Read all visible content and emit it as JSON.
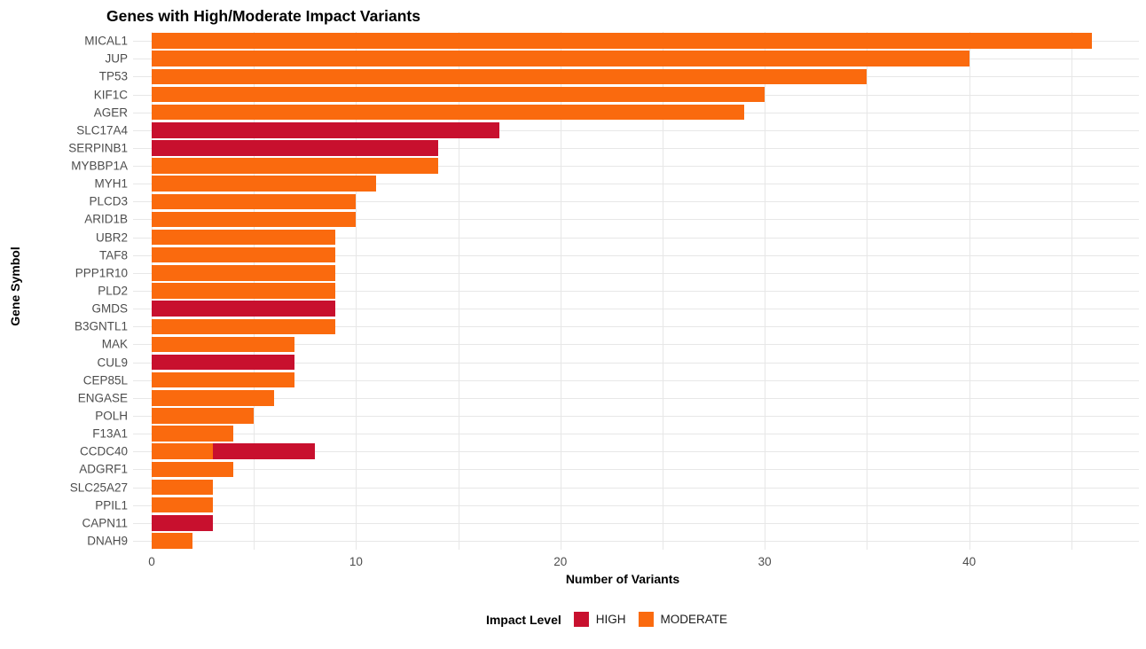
{
  "chart_data": {
    "type": "bar",
    "orientation": "horizontal",
    "title": "Genes with High/Moderate Impact Variants",
    "xlabel": "Number of Variants",
    "ylabel": "Gene Symbol",
    "xlim": [
      0,
      48.3
    ],
    "xticks": [
      0,
      10,
      20,
      30,
      40
    ],
    "gridlines_x": [
      0,
      5,
      10,
      15,
      20,
      25,
      30,
      35,
      40,
      45
    ],
    "grid": true,
    "background": "#ffffff",
    "grid_color": "#e7e7e7",
    "colors": {
      "HIGH": "#C8102E",
      "MODERATE": "#FA6A0E"
    },
    "legend": {
      "title": "Impact Level",
      "position": "bottom",
      "entries": [
        {
          "label": "HIGH",
          "color": "#C8102E"
        },
        {
          "label": "MODERATE",
          "color": "#FA6A0E"
        }
      ]
    },
    "categories": [
      "MICAL1",
      "JUP",
      "TP53",
      "KIF1C",
      "AGER",
      "SLC17A4",
      "SERPINB1",
      "MYBBP1A",
      "MYH1",
      "PLCD3",
      "ARID1B",
      "UBR2",
      "TAF8",
      "PPP1R10",
      "PLD2",
      "GMDS",
      "B3GNTL1",
      "MAK",
      "CUL9",
      "CEP85L",
      "ENGASE",
      "POLH",
      "F13A1",
      "CCDC40",
      "ADGRF1",
      "SLC25A27",
      "PPIL1",
      "CAPN11",
      "DNAH9"
    ],
    "bars": [
      {
        "gene": "MICAL1",
        "total": 46,
        "segments": [
          {
            "level": "MODERATE",
            "value": 46
          }
        ]
      },
      {
        "gene": "JUP",
        "total": 40,
        "segments": [
          {
            "level": "MODERATE",
            "value": 40
          }
        ]
      },
      {
        "gene": "TP53",
        "total": 35,
        "segments": [
          {
            "level": "MODERATE",
            "value": 35
          }
        ]
      },
      {
        "gene": "KIF1C",
        "total": 30,
        "segments": [
          {
            "level": "MODERATE",
            "value": 30
          }
        ]
      },
      {
        "gene": "AGER",
        "total": 29,
        "segments": [
          {
            "level": "MODERATE",
            "value": 29
          }
        ]
      },
      {
        "gene": "SLC17A4",
        "total": 17,
        "segments": [
          {
            "level": "HIGH",
            "value": 17
          }
        ]
      },
      {
        "gene": "SERPINB1",
        "total": 14,
        "segments": [
          {
            "level": "HIGH",
            "value": 14
          }
        ]
      },
      {
        "gene": "MYBBP1A",
        "total": 14,
        "segments": [
          {
            "level": "MODERATE",
            "value": 14
          }
        ]
      },
      {
        "gene": "MYH1",
        "total": 11,
        "segments": [
          {
            "level": "MODERATE",
            "value": 11
          }
        ]
      },
      {
        "gene": "PLCD3",
        "total": 10,
        "segments": [
          {
            "level": "MODERATE",
            "value": 10
          }
        ]
      },
      {
        "gene": "ARID1B",
        "total": 10,
        "segments": [
          {
            "level": "MODERATE",
            "value": 10
          }
        ]
      },
      {
        "gene": "UBR2",
        "total": 9,
        "segments": [
          {
            "level": "MODERATE",
            "value": 9
          }
        ]
      },
      {
        "gene": "TAF8",
        "total": 9,
        "segments": [
          {
            "level": "MODERATE",
            "value": 9
          }
        ]
      },
      {
        "gene": "PPP1R10",
        "total": 9,
        "segments": [
          {
            "level": "MODERATE",
            "value": 9
          }
        ]
      },
      {
        "gene": "PLD2",
        "total": 9,
        "segments": [
          {
            "level": "MODERATE",
            "value": 9
          }
        ]
      },
      {
        "gene": "GMDS",
        "total": 9,
        "segments": [
          {
            "level": "HIGH",
            "value": 9
          }
        ]
      },
      {
        "gene": "B3GNTL1",
        "total": 9,
        "segments": [
          {
            "level": "MODERATE",
            "value": 9
          }
        ]
      },
      {
        "gene": "MAK",
        "total": 7,
        "segments": [
          {
            "level": "MODERATE",
            "value": 7
          }
        ]
      },
      {
        "gene": "CUL9",
        "total": 7,
        "segments": [
          {
            "level": "HIGH",
            "value": 7
          }
        ]
      },
      {
        "gene": "CEP85L",
        "total": 7,
        "segments": [
          {
            "level": "MODERATE",
            "value": 7
          }
        ]
      },
      {
        "gene": "ENGASE",
        "total": 6,
        "segments": [
          {
            "level": "MODERATE",
            "value": 6
          }
        ]
      },
      {
        "gene": "POLH",
        "total": 5,
        "segments": [
          {
            "level": "MODERATE",
            "value": 5
          }
        ]
      },
      {
        "gene": "F13A1",
        "total": 4,
        "segments": [
          {
            "level": "MODERATE",
            "value": 4
          }
        ]
      },
      {
        "gene": "CCDC40",
        "total": 8,
        "segments": [
          {
            "level": "MODERATE",
            "value": 3
          },
          {
            "level": "HIGH",
            "value": 5
          }
        ]
      },
      {
        "gene": "ADGRF1",
        "total": 4,
        "segments": [
          {
            "level": "MODERATE",
            "value": 4
          }
        ]
      },
      {
        "gene": "SLC25A27",
        "total": 3,
        "segments": [
          {
            "level": "MODERATE",
            "value": 3
          }
        ]
      },
      {
        "gene": "PPIL1",
        "total": 3,
        "segments": [
          {
            "level": "MODERATE",
            "value": 3
          }
        ]
      },
      {
        "gene": "CAPN11",
        "total": 3,
        "segments": [
          {
            "level": "HIGH",
            "value": 3
          }
        ]
      },
      {
        "gene": "DNAH9",
        "total": 2,
        "segments": [
          {
            "level": "MODERATE",
            "value": 2
          }
        ]
      }
    ]
  }
}
